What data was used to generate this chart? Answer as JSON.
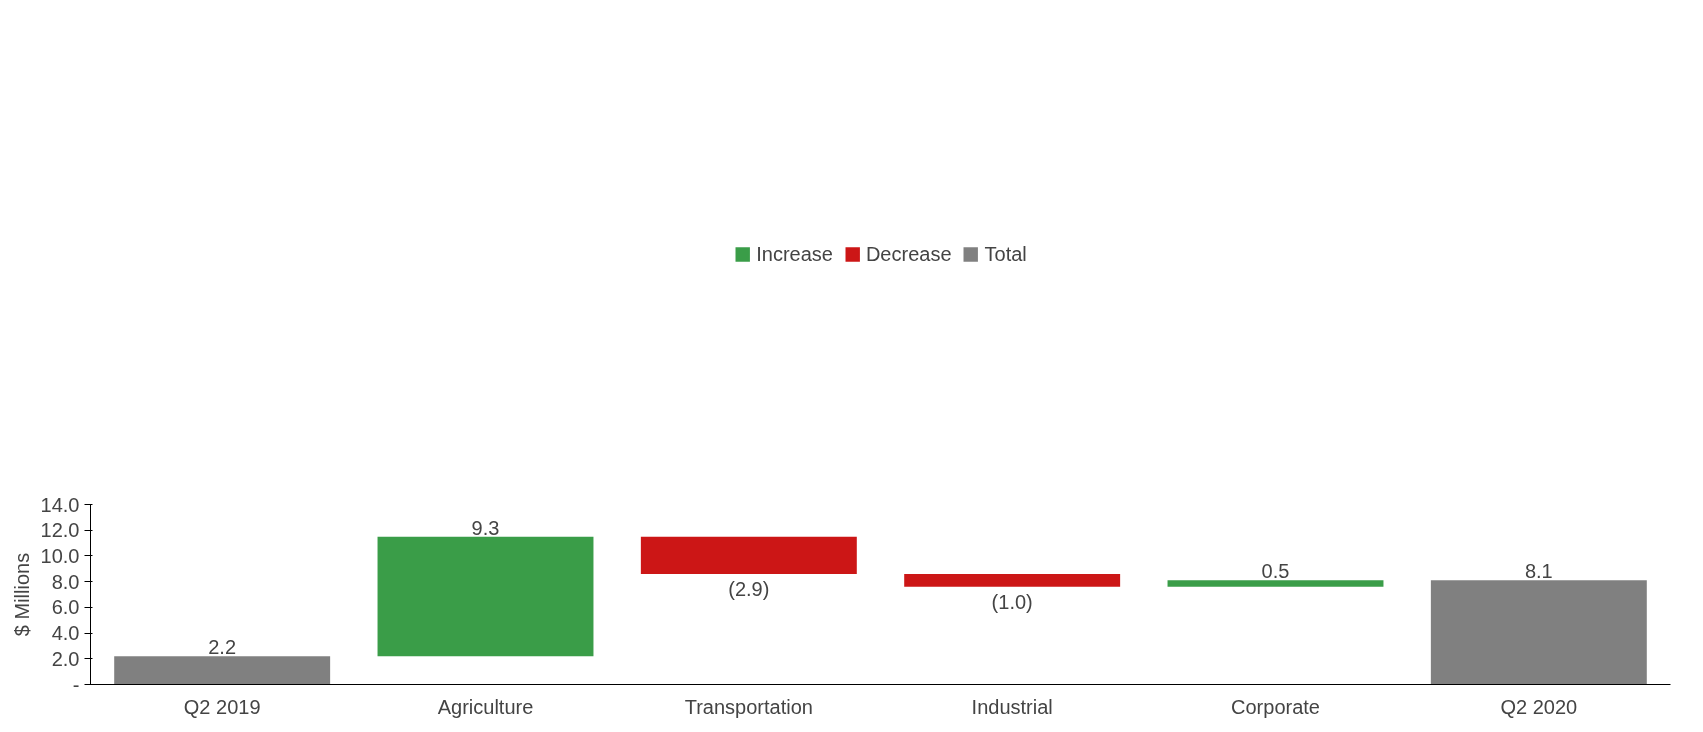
{
  "chart_data": {
    "type": "bar",
    "ylabel": "$ Millions",
    "categories": [
      "Q2 2019",
      "Agriculture",
      "Transportation",
      "Industrial",
      "Corporate",
      "Q2 2020"
    ],
    "series": [
      {
        "name": "Increase",
        "color": "#3a9d48",
        "values": [
          null,
          9.3,
          null,
          null,
          0.5,
          null
        ],
        "base": [
          null,
          2.2,
          null,
          null,
          7.6,
          null
        ],
        "value_labels": [
          null,
          "9.3",
          null,
          null,
          "0.5",
          null
        ]
      },
      {
        "name": "Decrease",
        "color": "#cc1616",
        "values": [
          null,
          null,
          -2.9,
          -1.0,
          null,
          null
        ],
        "base": [
          null,
          null,
          11.5,
          8.6,
          null,
          null
        ],
        "value_labels": [
          null,
          null,
          "(2.9)",
          "(1.0)",
          null,
          null
        ]
      },
      {
        "name": "Total",
        "color": "#808080",
        "values": [
          2.2,
          null,
          null,
          null,
          null,
          8.1
        ],
        "base": [
          0,
          null,
          null,
          null,
          null,
          0
        ],
        "value_labels": [
          "2.2",
          null,
          null,
          null,
          null,
          "8.1"
        ]
      }
    ],
    "ylim": [
      0,
      14
    ],
    "yticks": [
      {
        "value": 0,
        "label": "-"
      },
      {
        "value": 2,
        "label": "2.0"
      },
      {
        "value": 4,
        "label": "4.0"
      },
      {
        "value": 6,
        "label": "6.0"
      },
      {
        "value": 8,
        "label": "8.0"
      },
      {
        "value": 10,
        "label": "10.0"
      },
      {
        "value": 12,
        "label": "12.0"
      },
      {
        "value": 14,
        "label": "14.0"
      }
    ],
    "grid": false,
    "legend": "top"
  }
}
